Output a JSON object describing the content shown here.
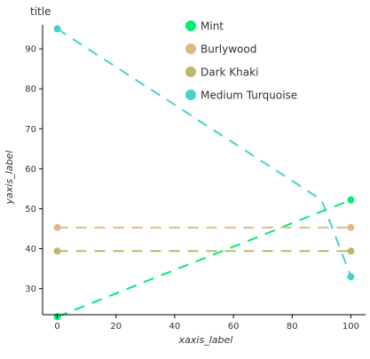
{
  "chart_data": {
    "type": "line",
    "title": "title",
    "xlabel": "xaxis_label",
    "ylabel": "yaxis_label",
    "xlim": [
      -5,
      105
    ],
    "ylim": [
      23.5,
      96
    ],
    "x_ticks": [
      0,
      20,
      40,
      60,
      80,
      100
    ],
    "y_ticks": [
      30,
      40,
      50,
      60,
      70,
      80,
      90
    ],
    "grid": false,
    "legend_position": "top-right",
    "series": [
      {
        "name": "Mint",
        "color": "#00ee76",
        "x": [
          0,
          10,
          20,
          30,
          40,
          50,
          60,
          70,
          80,
          90,
          100
        ],
        "y": [
          23.0,
          25.9,
          28.8,
          31.8,
          34.7,
          37.6,
          40.5,
          43.4,
          46.4,
          49.3,
          52.2
        ]
      },
      {
        "name": "Burlywood",
        "color": "#deb887",
        "x": [
          0,
          10,
          20,
          30,
          40,
          50,
          60,
          70,
          80,
          90,
          100
        ],
        "y": [
          45.3,
          45.3,
          45.3,
          45.3,
          45.3,
          45.3,
          45.3,
          45.3,
          45.3,
          45.3,
          45.3
        ]
      },
      {
        "name": "Dark Khaki",
        "color": "#bdb76b",
        "x": [
          0,
          10,
          20,
          30,
          40,
          50,
          60,
          70,
          80,
          90,
          100
        ],
        "y": [
          39.4,
          39.4,
          39.4,
          39.4,
          39.4,
          39.4,
          39.4,
          39.4,
          39.4,
          39.4,
          39.4
        ]
      },
      {
        "name": "Medium Turquoise",
        "color": "#48d1cc",
        "x": [
          0,
          10,
          20,
          30,
          40,
          50,
          60,
          70,
          80,
          90,
          100
        ],
        "y": [
          95.0,
          90.2,
          85.5,
          80.7,
          76.0,
          71.2,
          66.5,
          61.7,
          57.0,
          52.2,
          33.0
        ]
      }
    ]
  }
}
